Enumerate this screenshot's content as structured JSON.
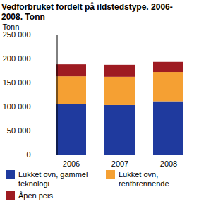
{
  "chart_data": {
    "type": "bar",
    "stacked": true,
    "title": "Vedforbruket fordelt på ildstedstype. 2006-2008. Tonn",
    "y_label": "Tonn",
    "categories": [
      "2006",
      "2007",
      "2008"
    ],
    "series": [
      {
        "name": "Lukket ovn, gammel teknologi",
        "color": "#1f3a9e",
        "values": [
          105000,
          103000,
          111000
        ]
      },
      {
        "name": "Lukket ovn, rentbrennende",
        "color": "#f5a033",
        "values": [
          58000,
          59000,
          61000
        ]
      },
      {
        "name": "Åpen peis",
        "color": "#9e1b22",
        "values": [
          25000,
          25000,
          21000
        ]
      }
    ],
    "ylim": [
      0,
      250000
    ],
    "yticks": [
      0,
      {
        "value": 50000,
        "label": "50 000"
      },
      {
        "value": 100000,
        "label": "100 000"
      },
      {
        "value": 150000,
        "label": "150 000"
      },
      {
        "value": 200000,
        "label": "200 000"
      },
      {
        "value": 250000,
        "label": "250 000"
      }
    ],
    "grid": true,
    "legend": "bottom"
  }
}
